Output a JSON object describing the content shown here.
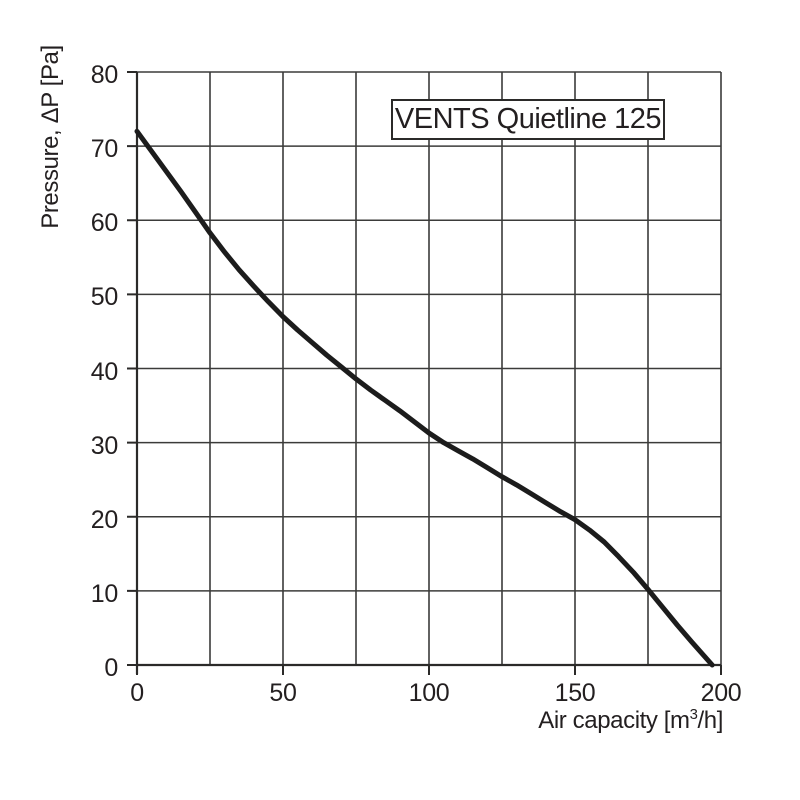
{
  "chart_data": {
    "type": "line",
    "title": "VENTS Quietline 125",
    "ylabel": "Pressure, ΔP [Pa]",
    "xlabel_parts": {
      "prefix": "Air capacity [m",
      "sup": "3",
      "suffix": "/h]"
    },
    "xlim": [
      0,
      200
    ],
    "ylim": [
      0,
      80
    ],
    "x_gridline_step": 25,
    "y_gridline_step": 10,
    "x_tick_labels": [
      0,
      50,
      100,
      150,
      200
    ],
    "y_tick_labels": [
      0,
      10,
      20,
      30,
      40,
      50,
      60,
      70,
      80
    ],
    "grid": true,
    "legend": "none",
    "series": [
      {
        "name": "VENTS Quietline 125",
        "points": [
          [
            0,
            72
          ],
          [
            5,
            69.3
          ],
          [
            10,
            66.6
          ],
          [
            15,
            63.9
          ],
          [
            20,
            61.1
          ],
          [
            25,
            58.3
          ],
          [
            30,
            55.7
          ],
          [
            35,
            53.3
          ],
          [
            40,
            51.1
          ],
          [
            45,
            49.0
          ],
          [
            50,
            47.0
          ],
          [
            55,
            45.2
          ],
          [
            60,
            43.5
          ],
          [
            65,
            41.8
          ],
          [
            70,
            40.2
          ],
          [
            75,
            38.6
          ],
          [
            80,
            37.1
          ],
          [
            85,
            35.7
          ],
          [
            90,
            34.3
          ],
          [
            95,
            32.8
          ],
          [
            100,
            31.3
          ],
          [
            105,
            30.0
          ],
          [
            110,
            28.9
          ],
          [
            115,
            27.8
          ],
          [
            120,
            26.6
          ],
          [
            125,
            25.4
          ],
          [
            130,
            24.3
          ],
          [
            135,
            23.1
          ],
          [
            140,
            21.9
          ],
          [
            145,
            20.7
          ],
          [
            150,
            19.6
          ],
          [
            155,
            18.2
          ],
          [
            160,
            16.6
          ],
          [
            165,
            14.6
          ],
          [
            170,
            12.5
          ],
          [
            175,
            10.2
          ],
          [
            180,
            7.8
          ],
          [
            185,
            5.4
          ],
          [
            190,
            3.1
          ],
          [
            197,
            0
          ]
        ]
      }
    ],
    "colors": {
      "background": "#ffffff",
      "grid": "#3b3b3a",
      "axis": "#2b2a29",
      "curve": "#1c1c1c",
      "text": "#231f20"
    }
  }
}
